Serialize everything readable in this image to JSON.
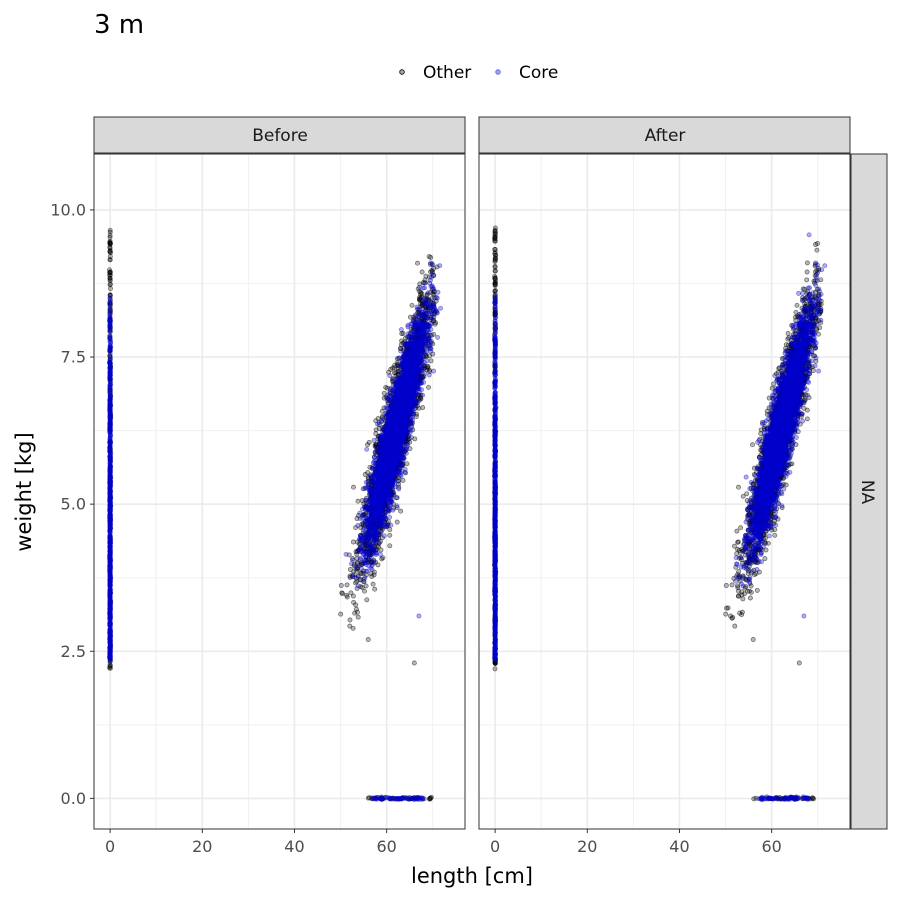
{
  "chart_data": {
    "type": "scatter",
    "title": "3 m",
    "xlabel": "length [cm]",
    "ylabel": "weight [kg]",
    "xlim": [
      -3.5,
      77
    ],
    "ylim": [
      -0.52,
      10.95
    ],
    "x_ticks": [
      0,
      20,
      40,
      60
    ],
    "y_ticks": [
      0.0,
      2.5,
      5.0,
      7.5,
      10.0
    ],
    "x_tick_labels": [
      "0",
      "20",
      "40",
      "60"
    ],
    "y_tick_labels": [
      "0.0",
      "2.5",
      "5.0",
      "7.5",
      "10.0"
    ],
    "grid": true,
    "legend_position": "top",
    "legend": [
      {
        "name": "Other",
        "color": "#000000"
      },
      {
        "name": "Core",
        "color": "#0000cc"
      }
    ],
    "facets": {
      "columns": [
        "Before",
        "After"
      ],
      "rows": [
        "NA"
      ]
    },
    "panels": [
      {
        "facet": "Before",
        "groups": [
          {
            "series": "Other",
            "kind": "zero-length",
            "x": 0,
            "y_range": [
              2.2,
              9.7
            ]
          },
          {
            "series": "Core",
            "kind": "zero-length",
            "x": 0,
            "y_range": [
              2.35,
              8.55
            ]
          },
          {
            "series": "Other",
            "kind": "main-cloud",
            "x_range": [
              50,
              71
            ],
            "y_range": [
              2.7,
              10.2
            ]
          },
          {
            "series": "Core",
            "kind": "main-cloud",
            "x_range": [
              51,
              72
            ],
            "y_range": [
              3.6,
              10.45
            ]
          },
          {
            "series": "Other",
            "kind": "zero-weight",
            "y": 0,
            "x_range": [
              56,
              70
            ]
          },
          {
            "series": "Core",
            "kind": "zero-weight",
            "y": 0,
            "x_range": [
              57,
              68
            ]
          }
        ],
        "outliers": [
          {
            "series": "Other",
            "x": 66,
            "y": 2.3
          },
          {
            "series": "Core",
            "x": 67,
            "y": 3.1
          },
          {
            "series": "Other",
            "x": 56,
            "y": 2.7
          }
        ]
      },
      {
        "facet": "After",
        "groups": [
          {
            "series": "Other",
            "kind": "zero-length",
            "x": 0,
            "y_range": [
              2.2,
              9.7
            ]
          },
          {
            "series": "Core",
            "kind": "zero-length",
            "x": 0,
            "y_range": [
              2.35,
              8.55
            ]
          },
          {
            "series": "Other",
            "kind": "main-cloud",
            "x_range": [
              50,
              71
            ],
            "y_range": [
              2.7,
              10.0
            ]
          },
          {
            "series": "Core",
            "kind": "main-cloud",
            "x_range": [
              51,
              72
            ],
            "y_range": [
              3.6,
              10.45
            ]
          },
          {
            "series": "Other",
            "kind": "zero-weight",
            "y": 0,
            "x_range": [
              56,
              70
            ]
          },
          {
            "series": "Core",
            "kind": "zero-weight",
            "y": 0,
            "x_range": [
              57,
              68
            ]
          }
        ],
        "outliers": [
          {
            "series": "Other",
            "x": 66,
            "y": 2.3
          },
          {
            "series": "Core",
            "x": 67,
            "y": 3.1
          },
          {
            "series": "Other",
            "x": 56,
            "y": 2.7
          }
        ]
      }
    ]
  }
}
